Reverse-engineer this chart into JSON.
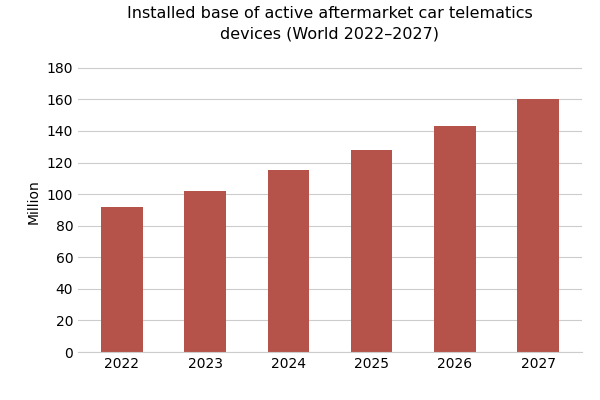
{
  "categories": [
    "2022",
    "2023",
    "2024",
    "2025",
    "2026",
    "2027"
  ],
  "values": [
    92,
    102,
    115,
    128,
    143,
    160
  ],
  "bar_color": "#B5534A",
  "title": "Installed base of active aftermarket car telematics\ndevices (World 2022–2027)",
  "ylabel": "Million",
  "ylim": [
    0,
    190
  ],
  "yticks": [
    0,
    20,
    40,
    60,
    80,
    100,
    120,
    140,
    160,
    180
  ],
  "background_color": "#ffffff",
  "grid_color": "#cccccc",
  "title_fontsize": 11.5,
  "label_fontsize": 10,
  "tick_fontsize": 10,
  "bar_width": 0.5
}
